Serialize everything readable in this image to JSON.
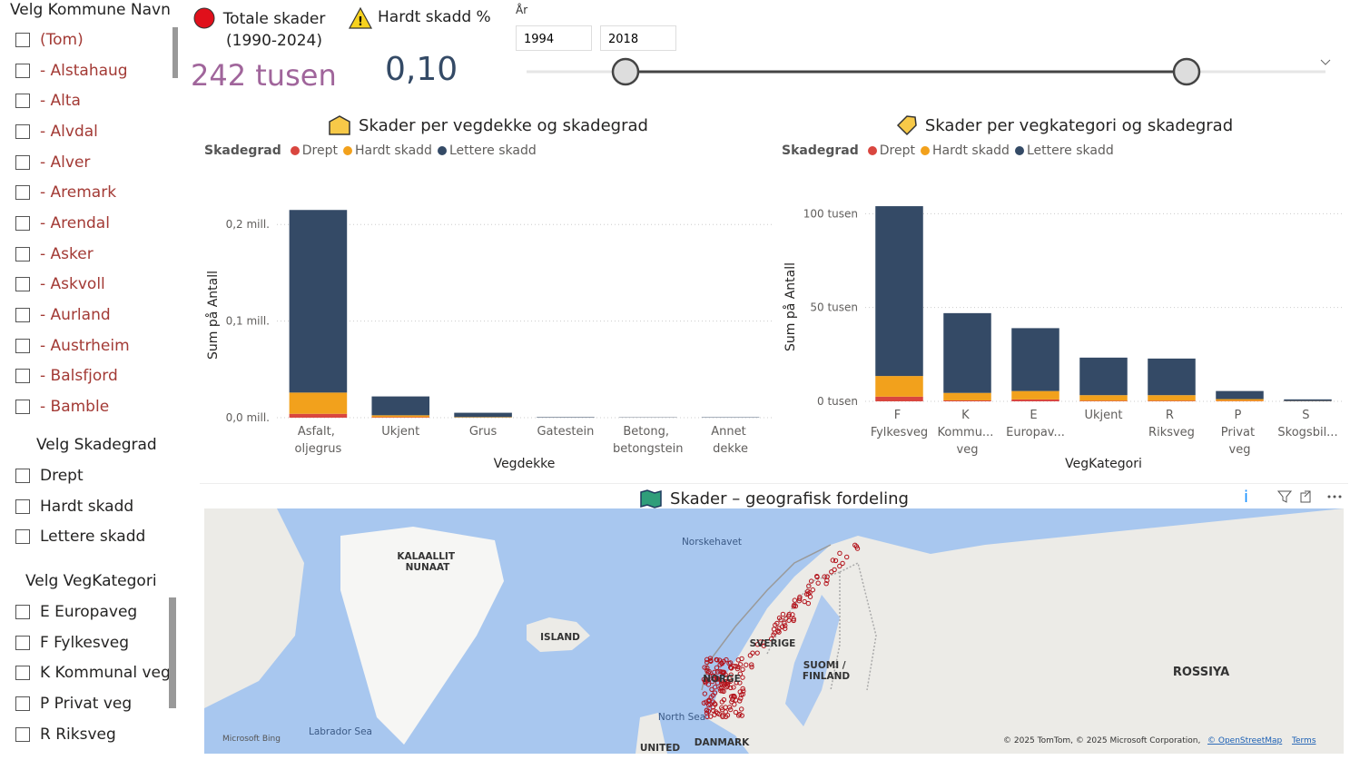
{
  "slicers": [
    {
      "title": "Velg Kommune Navn",
      "items": [
        "(Tom)",
        "- Alstahaug",
        "- Alta",
        "- Alvdal",
        "- Alver",
        "- Aremark",
        "- Arendal",
        "- Asker",
        "- Askvoll",
        "- Aurland",
        "- Austrheim",
        "- Balsfjord",
        "- Bamble"
      ]
    },
    {
      "title": "Velg Skadegrad",
      "items": [
        "Drept",
        "Hardt skadd",
        "Lettere skadd"
      ]
    },
    {
      "title": "Velg VegKategori",
      "items": [
        "E Europaveg",
        "F Fylkesveg",
        "K Kommunal veg",
        "P Privat veg",
        "R Riksveg"
      ]
    }
  ],
  "cards": [
    {
      "label": "Totale skader (1990-2024)",
      "value": "242 tusen"
    },
    {
      "label": "Hardt skadd %",
      "value": "0,10"
    }
  ],
  "year_slider": {
    "label": "År",
    "from": "1994",
    "to": "2018"
  },
  "chart_data": [
    {
      "type": "bar",
      "stacked": true,
      "title": "Skader per vegdekke og skadegrad",
      "legend_title": "Skadegrad",
      "x_label": "Vegdekke",
      "y_label": "Sum på Antall",
      "categories": [
        "Asfalt, oljegrus",
        "Ukjent",
        "Grus",
        "Gatestein",
        "Betong, betongstein",
        "Annet dekke"
      ],
      "series": [
        {
          "name": "Drept",
          "color": "#d9463f",
          "values": [
            4000,
            500,
            100,
            20,
            10,
            10
          ]
        },
        {
          "name": "Hardt skadd",
          "color": "#f2a11c",
          "values": [
            22000,
            2000,
            500,
            60,
            40,
            50
          ]
        },
        {
          "name": "Lettere skadd",
          "color": "#344a66",
          "values": [
            189000,
            19500,
            4500,
            500,
            300,
            400
          ]
        }
      ],
      "ylim": [
        0,
        250000
      ],
      "yticks": [
        {
          "value": 0,
          "label": "0,0 mill."
        },
        {
          "value": 100000,
          "label": "0,1 mill."
        },
        {
          "value": 200000,
          "label": "0,2 mill."
        }
      ],
      "grid": true
    },
    {
      "type": "bar",
      "stacked": true,
      "title": "Skader per vegkategori og skadegrad",
      "legend_title": "Skadegrad",
      "x_label": "VegKategori",
      "y_label": "Sum på Antall",
      "categories": [
        "F Fylkesveg",
        "K Kommu... veg",
        "E Europav...",
        "Ukjent",
        "R Riksveg",
        "P Privat veg",
        "S Skogsbil..."
      ],
      "series": [
        {
          "name": "Drept",
          "color": "#d9463f",
          "values": [
            2500,
            500,
            1000,
            300,
            300,
            200,
            50
          ]
        },
        {
          "name": "Hardt skadd",
          "color": "#f2a11c",
          "values": [
            11000,
            4000,
            4500,
            3000,
            3000,
            1000,
            100
          ]
        },
        {
          "name": "Lettere skadd",
          "color": "#344a66",
          "values": [
            90500,
            42500,
            33500,
            20000,
            19500,
            4300,
            900
          ]
        }
      ],
      "ylim": [
        0,
        120000
      ],
      "yticks": [
        {
          "value": 0,
          "label": "0 tusen"
        },
        {
          "value": 50000,
          "label": "50 tusen"
        },
        {
          "value": 100000,
          "label": "100 tusen"
        }
      ],
      "grid": true
    }
  ],
  "map": {
    "title": "Skader – geografisk fordeling",
    "labels": [
      "KALAALLIT NUNAAT",
      "Norskehavet",
      "ISLAND",
      "SVERIGE",
      "SUOMI / FINLAND",
      "NORGE",
      "ROSSIYA",
      "North Sea",
      "Labrador Sea",
      "DANMARK",
      "UNITED"
    ],
    "brand": "Microsoft Bing",
    "attribution": "© 2025 TomTom, © 2025 Microsoft Corporation,",
    "osm": "© OpenStreetMap",
    "terms": "Terms"
  }
}
